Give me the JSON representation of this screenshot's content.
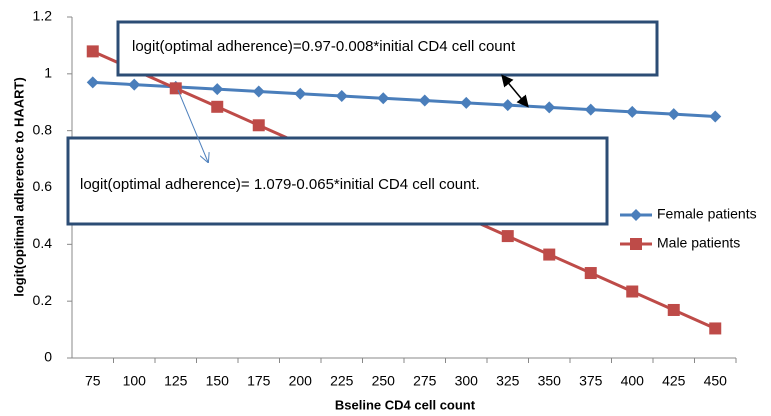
{
  "chart_data": {
    "type": "line",
    "x_label": "Bseline CD4 cell count",
    "y_label": "logit(opitimal adherence to HAART)",
    "categories": [
      75,
      100,
      125,
      150,
      175,
      200,
      225,
      250,
      275,
      300,
      325,
      350,
      375,
      400,
      425,
      450
    ],
    "series": [
      {
        "name": "Female  patients",
        "color": "#4a7ebb",
        "marker": "diamond",
        "values": [
          0.97,
          0.962,
          0.954,
          0.946,
          0.938,
          0.93,
          0.922,
          0.914,
          0.906,
          0.898,
          0.89,
          0.882,
          0.874,
          0.866,
          0.858,
          0.85
        ]
      },
      {
        "name": "Male  patients",
        "color": "#be4b48",
        "marker": "square",
        "values": [
          1.079,
          1.014,
          0.949,
          0.884,
          0.819,
          0.754,
          0.689,
          0.624,
          0.559,
          0.494,
          0.429,
          0.364,
          0.299,
          0.234,
          0.169,
          0.104
        ]
      }
    ],
    "ylim": [
      0,
      1.2
    ],
    "yticks": [
      0,
      0.2,
      0.4,
      0.6,
      0.8,
      1,
      1.2
    ],
    "grid": false,
    "annotations": [
      {
        "text": "logit(optimal adherence)=0.97-0.008*initial CD4 cell count",
        "color": "#4f81bd"
      },
      {
        "text": "logit(optimal adherence)= 1.079-0.065*initial CD4 cell count.",
        "color": "#e0201b"
      }
    ]
  }
}
